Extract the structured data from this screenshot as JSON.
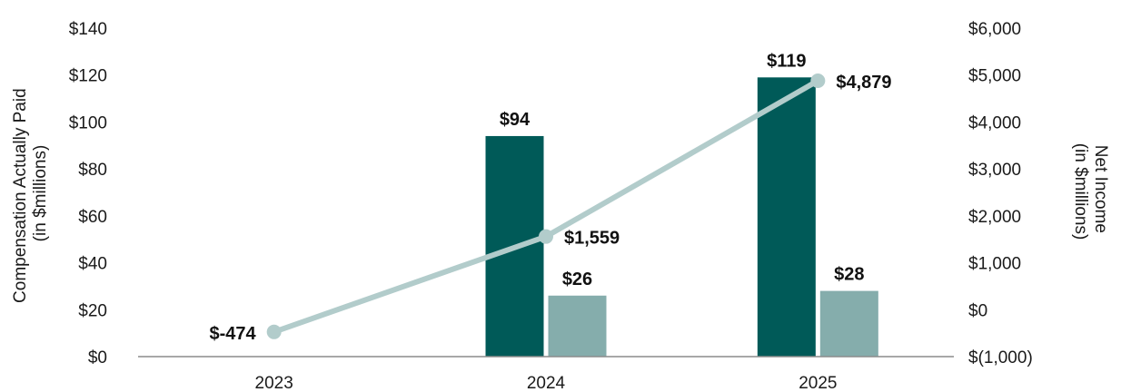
{
  "chart_data": {
    "type": "bar",
    "title": "",
    "categories": [
      "2023",
      "2024",
      "2025"
    ],
    "left_axis": {
      "label_lines": [
        "Compensation Actually Paid",
        "(in $millions)"
      ],
      "range": [
        0,
        140
      ],
      "ticks": [
        0,
        20,
        40,
        60,
        80,
        100,
        120,
        140
      ],
      "tick_labels": [
        "$0",
        "$20",
        "$40",
        "$60",
        "$80",
        "$100",
        "$120",
        "$140"
      ]
    },
    "right_axis": {
      "label_lines": [
        "Net Income",
        "(in $millions)"
      ],
      "range": [
        -1000,
        6000
      ],
      "ticks": [
        -1000,
        0,
        1000,
        2000,
        3000,
        4000,
        5000,
        6000
      ],
      "tick_labels": [
        "$(1,000)",
        "$0",
        "$1,000",
        "$2,000",
        "$3,000",
        "$4,000",
        "$5,000",
        "$6,000"
      ]
    },
    "series": [
      {
        "type": "bar",
        "axis": "left",
        "color": "#005a58",
        "values": [
          null,
          94,
          119
        ],
        "labels": [
          null,
          "$94",
          "$119"
        ]
      },
      {
        "type": "bar",
        "axis": "left",
        "color": "#85adac",
        "values": [
          null,
          26,
          28
        ],
        "labels": [
          null,
          "$26",
          "$28"
        ]
      },
      {
        "type": "line",
        "axis": "right",
        "color": "#b2cccb",
        "values": [
          -474,
          1559,
          4879
        ],
        "labels": [
          "$-474",
          "$1,559",
          "$4,879"
        ]
      }
    ],
    "legend": "none",
    "grid": false
  }
}
